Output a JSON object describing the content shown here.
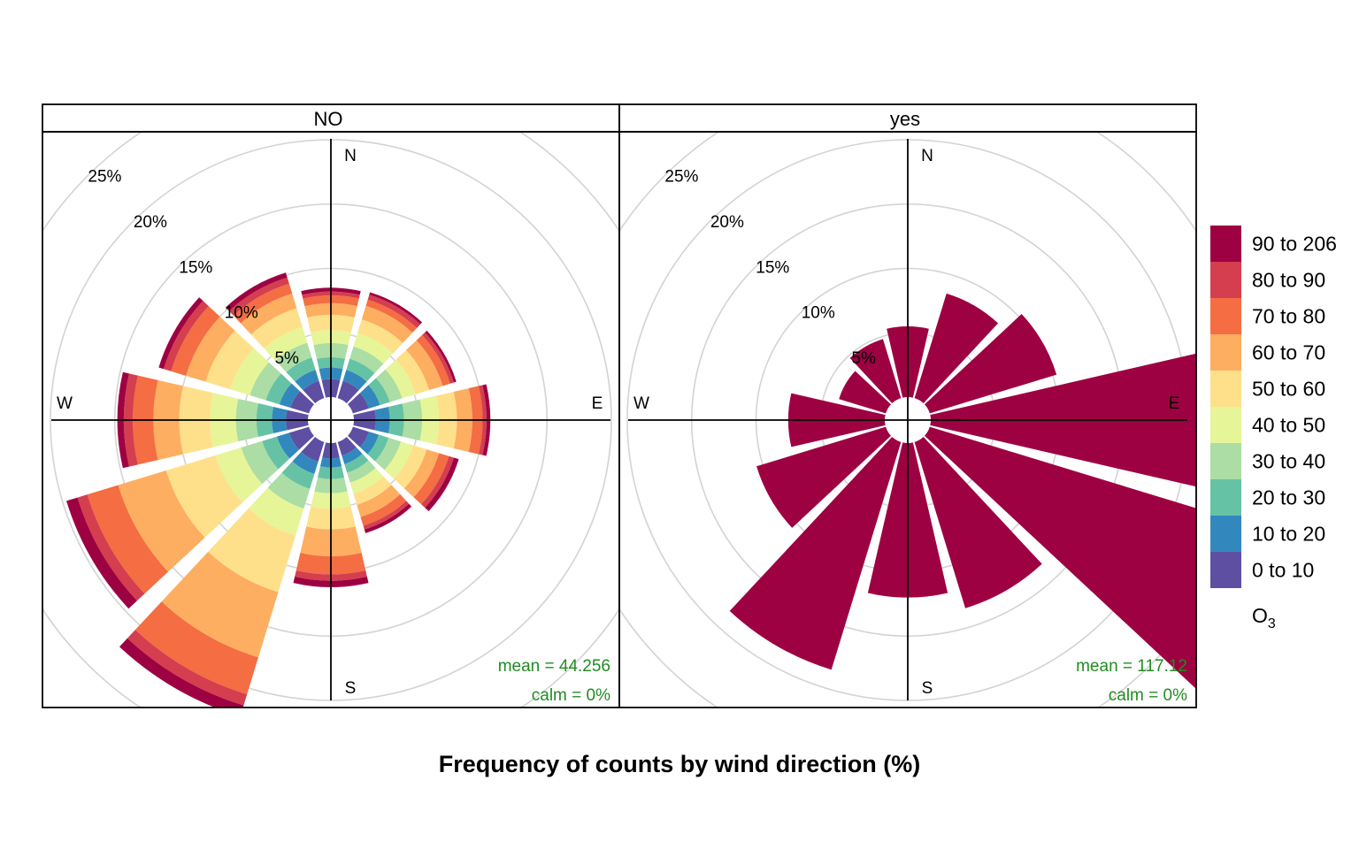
{
  "chart_data": {
    "type": "polar-bar",
    "title": "",
    "xlabel": "Frequency of counts by wind direction (%)",
    "ring_labels": [
      "5%",
      "10%",
      "15%",
      "20%",
      "25%"
    ],
    "ring_values": [
      5,
      10,
      15,
      20,
      25
    ],
    "compass": [
      "N",
      "E",
      "S",
      "W"
    ],
    "legend": {
      "title_main": "O",
      "title_sub": "3",
      "bins": [
        "0 to 10",
        "10 to 20",
        "20 to 30",
        "30 to 40",
        "40 to 50",
        "50 to 60",
        "60 to 70",
        "70 to 80",
        "80 to 90",
        "90 to 206"
      ],
      "colors": [
        "#5E4FA2",
        "#3288BD",
        "#66C2A5",
        "#ABDDA4",
        "#E6F598",
        "#FEE08B",
        "#FDAE61",
        "#F46D43",
        "#D53E4F",
        "#9E0142"
      ]
    },
    "directions_deg": [
      0,
      30,
      60,
      90,
      120,
      150,
      180,
      210,
      240,
      270,
      300,
      330
    ],
    "panels": [
      {
        "name": "NO",
        "mean_label": "mean = 44.256",
        "calm_label": "calm = 0%",
        "bins_cumulative": [
          [
            1.4,
            2.3,
            3.1,
            4.2,
            5.2,
            6.4,
            7.3,
            7.9,
            8.2,
            8.5
          ],
          [
            1.4,
            2.3,
            3.2,
            4.2,
            5.3,
            6.4,
            7.5,
            8.0,
            8.4,
            8.6
          ],
          [
            1.3,
            2.2,
            3.0,
            4.0,
            5.1,
            6.2,
            7.3,
            7.9,
            8.2,
            8.4
          ],
          [
            1.7,
            2.8,
            3.9,
            5.3,
            6.6,
            8.0,
            9.2,
            10.0,
            10.3,
            10.6
          ],
          [
            1.3,
            2.1,
            2.9,
            3.9,
            4.9,
            6.0,
            7.0,
            7.8,
            8.2,
            8.6
          ],
          [
            1.1,
            1.8,
            2.5,
            3.3,
            4.2,
            5.1,
            6.1,
            6.8,
            7.1,
            7.4
          ],
          [
            1.2,
            1.9,
            2.8,
            3.9,
            5.1,
            6.7,
            8.8,
            10.2,
            10.7,
            11.2
          ],
          [
            1.6,
            2.6,
            3.8,
            5.4,
            7.6,
            12.2,
            17.5,
            20.5,
            21.4,
            22.3
          ],
          [
            1.6,
            2.6,
            3.8,
            5.5,
            7.6,
            11.6,
            15.5,
            18.0,
            18.8,
            19.7
          ],
          [
            1.7,
            2.8,
            4.0,
            5.6,
            7.6,
            10.0,
            12.0,
            13.6,
            14.3,
            14.8
          ],
          [
            1.5,
            2.4,
            3.5,
            4.8,
            6.4,
            8.4,
            10.0,
            11.2,
            11.8,
            12.2
          ],
          [
            1.4,
            2.3,
            3.3,
            4.5,
            5.8,
            7.3,
            8.5,
            9.3,
            9.8,
            10.2
          ]
        ]
      },
      {
        "name": "yes",
        "mean_label": "mean = 117.12",
        "calm_label": "calm = 0%",
        "totals": [
          5.5,
          8.5,
          10.3,
          22.2,
          30.0,
          13.5,
          12.0,
          18.5,
          10.5,
          7.5,
          3.8,
          4.8
        ]
      }
    ]
  }
}
